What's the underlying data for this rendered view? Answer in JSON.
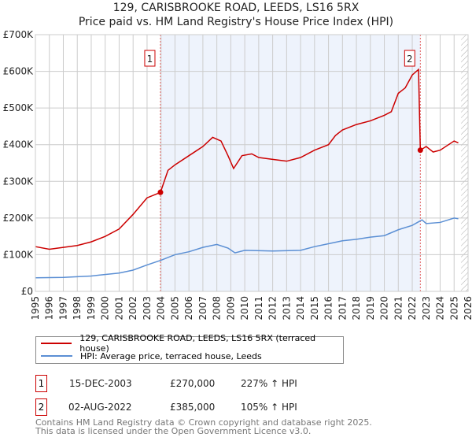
{
  "chart_data": {
    "type": "line",
    "title": "129, CARISBROOKE ROAD, LEEDS, LS16 5RX",
    "subtitle": "Price paid vs. HM Land Registry's House Price Index (HPI)",
    "xlim": [
      1995,
      2026
    ],
    "ylim": [
      0,
      700000
    ],
    "yticks": [
      {
        "v": 0,
        "label": "£0"
      },
      {
        "v": 100000,
        "label": "£100K"
      },
      {
        "v": 200000,
        "label": "£200K"
      },
      {
        "v": 300000,
        "label": "£300K"
      },
      {
        "v": 400000,
        "label": "£400K"
      },
      {
        "v": 500000,
        "label": "£500K"
      },
      {
        "v": 600000,
        "label": "£600K"
      },
      {
        "v": 700000,
        "label": "£700K"
      }
    ],
    "xticks": [
      "1995",
      "1996",
      "1997",
      "1998",
      "1999",
      "2000",
      "2001",
      "2002",
      "2003",
      "2004",
      "2005",
      "2006",
      "2007",
      "2008",
      "2009",
      "2010",
      "2011",
      "2012",
      "2013",
      "2014",
      "2015",
      "2016",
      "2017",
      "2018",
      "2019",
      "2020",
      "2021",
      "2022",
      "2023",
      "2024",
      "2025",
      "2026"
    ],
    "grid": true,
    "series": [
      {
        "name": "129, CARISBROOKE ROAD, LEEDS, LS16 5RX (terraced house)",
        "color": "#cc0000",
        "points": [
          [
            1995,
            122000
          ],
          [
            1996,
            115000
          ],
          [
            1997,
            120000
          ],
          [
            1998,
            125000
          ],
          [
            1999,
            135000
          ],
          [
            2000,
            150000
          ],
          [
            2001,
            170000
          ],
          [
            2002,
            210000
          ],
          [
            2003,
            255000
          ],
          [
            2003.96,
            270000
          ],
          [
            2004.5,
            330000
          ],
          [
            2005,
            345000
          ],
          [
            2006,
            370000
          ],
          [
            2007,
            395000
          ],
          [
            2007.7,
            420000
          ],
          [
            2008.3,
            410000
          ],
          [
            2008.8,
            370000
          ],
          [
            2009.2,
            335000
          ],
          [
            2009.8,
            370000
          ],
          [
            2010.5,
            375000
          ],
          [
            2011,
            365000
          ],
          [
            2012,
            360000
          ],
          [
            2013,
            355000
          ],
          [
            2014,
            365000
          ],
          [
            2015,
            385000
          ],
          [
            2016,
            400000
          ],
          [
            2016.5,
            425000
          ],
          [
            2017,
            440000
          ],
          [
            2018,
            455000
          ],
          [
            2019,
            465000
          ],
          [
            2020,
            480000
          ],
          [
            2020.5,
            490000
          ],
          [
            2021,
            540000
          ],
          [
            2021.5,
            555000
          ],
          [
            2022,
            590000
          ],
          [
            2022.45,
            605000
          ],
          [
            2022.58,
            385000
          ],
          [
            2023,
            395000
          ],
          [
            2023.5,
            380000
          ],
          [
            2024,
            385000
          ],
          [
            2025,
            410000
          ],
          [
            2025.3,
            405000
          ]
        ]
      },
      {
        "name": "HPI: Average price, terraced house, Leeds",
        "color": "#5b8fd4",
        "points": [
          [
            1995,
            37000
          ],
          [
            1997,
            38000
          ],
          [
            1999,
            42000
          ],
          [
            2001,
            50000
          ],
          [
            2002,
            58000
          ],
          [
            2003,
            72000
          ],
          [
            2004,
            85000
          ],
          [
            2005,
            100000
          ],
          [
            2006,
            108000
          ],
          [
            2007,
            120000
          ],
          [
            2008,
            128000
          ],
          [
            2008.8,
            118000
          ],
          [
            2009.3,
            105000
          ],
          [
            2010,
            112000
          ],
          [
            2012,
            110000
          ],
          [
            2014,
            112000
          ],
          [
            2015,
            122000
          ],
          [
            2016,
            130000
          ],
          [
            2017,
            138000
          ],
          [
            2018,
            142000
          ],
          [
            2019,
            148000
          ],
          [
            2020,
            152000
          ],
          [
            2021,
            168000
          ],
          [
            2022,
            180000
          ],
          [
            2022.7,
            195000
          ],
          [
            2023,
            185000
          ],
          [
            2024,
            188000
          ],
          [
            2025,
            200000
          ],
          [
            2025.3,
            198000
          ]
        ]
      }
    ],
    "annotations": [
      {
        "label": "1",
        "x": 2003.96,
        "y": 270000
      },
      {
        "label": "2",
        "x": 2022.58,
        "y": 385000
      }
    ],
    "shaded_range": [
      2003.96,
      2022.58
    ],
    "hatched_from": 2025.5
  },
  "transactions": [
    {
      "num": "1",
      "date": "15-DEC-2003",
      "price": "£270,000",
      "hpi": "227% ↑ HPI"
    },
    {
      "num": "2",
      "date": "02-AUG-2022",
      "price": "£385,000",
      "hpi": "105% ↑ HPI"
    }
  ],
  "footer": {
    "line1": "Contains HM Land Registry data © Crown copyright and database right 2025.",
    "line2": "This data is licensed under the Open Government Licence v3.0."
  }
}
